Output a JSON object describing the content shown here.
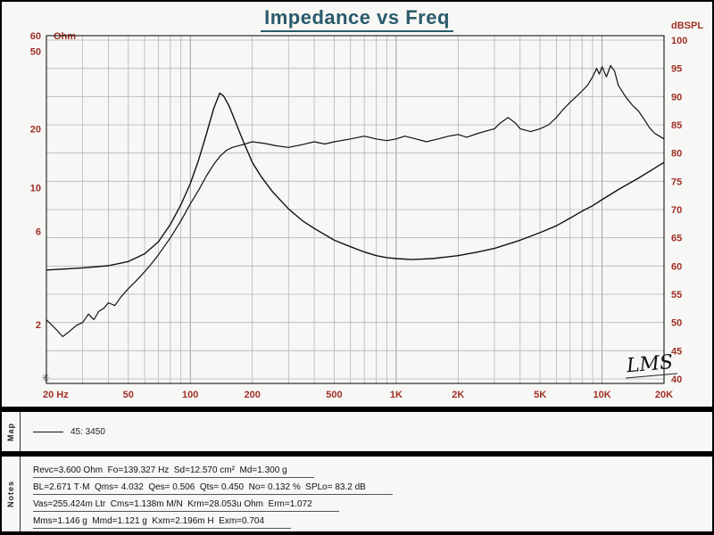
{
  "colors": {
    "bg": "#000000",
    "panel": "#f7f7f5",
    "title": "#2a5a6b",
    "axis": "#a03026",
    "grid": "#b5b5b5",
    "grid_major": "#8a8a8a",
    "curve": "#111111"
  },
  "chart": {
    "logo": "LMS"
  },
  "map": {
    "label": "Map",
    "legend": "45: 3450"
  },
  "notes": {
    "label": "Notes",
    "lines": [
      "Revc=3.600 Ohm  Fo=139.327 Hz  Sd=12.570 cm²  Md=1.300 g",
      "BL=2.671 T·M  Qms= 4.032  Qes= 0.506  Qts= 0.450  No= 0.132 %  SPLo= 83.2 dB",
      "Vas=255.424m Ltr  Cms=1.138m M/N  Krm=28.053u Ohm  Erm=1.072",
      "Mms=1.146 g  Mmd=1.121 g  Kxm=2.196m H  Exm=0.704"
    ]
  },
  "chart_data": {
    "type": "line",
    "title": "Impedance vs Freq",
    "grid": true,
    "x_axis": {
      "label": "Hz",
      "scale": "log",
      "min": 20,
      "max": 20000,
      "ticks": [
        {
          "f": 20,
          "label": "20 Hz"
        },
        {
          "f": 50,
          "label": "50"
        },
        {
          "f": 100,
          "label": "100"
        },
        {
          "f": 200,
          "label": "200"
        },
        {
          "f": 500,
          "label": "500"
        },
        {
          "f": 1000,
          "label": "1K"
        },
        {
          "f": 2000,
          "label": "2K"
        },
        {
          "f": 5000,
          "label": "5K"
        },
        {
          "f": 10000,
          "label": "10K"
        },
        {
          "f": 20000,
          "label": "20K"
        }
      ]
    },
    "left_axis": {
      "unit": "Ohm",
      "scale": "log",
      "min": 1,
      "max": 60,
      "ticks": [
        60,
        50,
        20,
        10,
        6,
        2
      ]
    },
    "right_axis": {
      "unit": "dBSPL",
      "scale": "linear",
      "min": 40,
      "max": 100,
      "tick_step": 5,
      "ticks": [
        100,
        95,
        90,
        85,
        80,
        75,
        70,
        65,
        60,
        55,
        50,
        45,
        40
      ]
    },
    "series": [
      {
        "name": "impedance",
        "axis": "left",
        "unit": "Ohm",
        "points": [
          [
            20,
            3.8
          ],
          [
            25,
            3.85
          ],
          [
            30,
            3.9
          ],
          [
            40,
            4.0
          ],
          [
            50,
            4.2
          ],
          [
            60,
            4.6
          ],
          [
            70,
            5.3
          ],
          [
            80,
            6.5
          ],
          [
            90,
            8.2
          ],
          [
            100,
            10.5
          ],
          [
            110,
            14
          ],
          [
            120,
            19
          ],
          [
            130,
            25.5
          ],
          [
            139,
            30.5
          ],
          [
            145,
            29.5
          ],
          [
            155,
            26
          ],
          [
            165,
            22
          ],
          [
            180,
            17.5
          ],
          [
            200,
            13.5
          ],
          [
            220,
            11.5
          ],
          [
            250,
            9.6
          ],
          [
            300,
            7.8
          ],
          [
            350,
            6.8
          ],
          [
            400,
            6.2
          ],
          [
            500,
            5.4
          ],
          [
            600,
            5.0
          ],
          [
            700,
            4.7
          ],
          [
            800,
            4.5
          ],
          [
            900,
            4.4
          ],
          [
            1000,
            4.35
          ],
          [
            1200,
            4.3
          ],
          [
            1500,
            4.35
          ],
          [
            2000,
            4.5
          ],
          [
            2500,
            4.7
          ],
          [
            3000,
            4.9
          ],
          [
            4000,
            5.4
          ],
          [
            5000,
            5.9
          ],
          [
            6000,
            6.4
          ],
          [
            7000,
            7.0
          ],
          [
            8000,
            7.6
          ],
          [
            9000,
            8.1
          ],
          [
            10000,
            8.7
          ],
          [
            12000,
            9.8
          ],
          [
            15000,
            11.2
          ],
          [
            18000,
            12.6
          ],
          [
            20000,
            13.5
          ]
        ]
      },
      {
        "name": "spl",
        "axis": "right",
        "unit": "dBSPL",
        "points": [
          [
            20,
            50.5
          ],
          [
            22,
            49
          ],
          [
            24,
            47.5
          ],
          [
            26,
            48.5
          ],
          [
            28,
            49.5
          ],
          [
            30,
            50
          ],
          [
            32,
            51.5
          ],
          [
            34,
            50.5
          ],
          [
            36,
            52
          ],
          [
            38,
            52.5
          ],
          [
            40,
            53.5
          ],
          [
            43,
            53
          ],
          [
            46,
            54.5
          ],
          [
            50,
            56
          ],
          [
            55,
            57.5
          ],
          [
            60,
            59
          ],
          [
            65,
            60.5
          ],
          [
            70,
            62
          ],
          [
            80,
            65
          ],
          [
            90,
            68
          ],
          [
            100,
            71
          ],
          [
            110,
            73.5
          ],
          [
            120,
            76
          ],
          [
            130,
            78
          ],
          [
            140,
            79.5
          ],
          [
            150,
            80.5
          ],
          [
            160,
            81
          ],
          [
            180,
            81.5
          ],
          [
            200,
            82
          ],
          [
            230,
            81.7
          ],
          [
            260,
            81.3
          ],
          [
            300,
            81
          ],
          [
            350,
            81.5
          ],
          [
            400,
            82
          ],
          [
            450,
            81.6
          ],
          [
            500,
            82
          ],
          [
            600,
            82.5
          ],
          [
            700,
            83
          ],
          [
            800,
            82.5
          ],
          [
            900,
            82.2
          ],
          [
            1000,
            82.5
          ],
          [
            1100,
            83
          ],
          [
            1250,
            82.5
          ],
          [
            1400,
            82
          ],
          [
            1600,
            82.5
          ],
          [
            1800,
            83
          ],
          [
            2000,
            83.3
          ],
          [
            2200,
            82.8
          ],
          [
            2500,
            83.5
          ],
          [
            2800,
            84
          ],
          [
            3000,
            84.3
          ],
          [
            3200,
            85.3
          ],
          [
            3500,
            86.3
          ],
          [
            3800,
            85.3
          ],
          [
            4000,
            84.3
          ],
          [
            4500,
            83.8
          ],
          [
            5000,
            84.3
          ],
          [
            5500,
            85
          ],
          [
            6000,
            86.3
          ],
          [
            6500,
            87.8
          ],
          [
            7000,
            89
          ],
          [
            7500,
            90
          ],
          [
            8000,
            91
          ],
          [
            8500,
            92
          ],
          [
            9000,
            93.5
          ],
          [
            9400,
            95
          ],
          [
            9700,
            94
          ],
          [
            10000,
            95.3
          ],
          [
            10500,
            93.5
          ],
          [
            11000,
            95.5
          ],
          [
            11500,
            94.5
          ],
          [
            12000,
            92
          ],
          [
            13000,
            90
          ],
          [
            14000,
            88.5
          ],
          [
            15000,
            87.5
          ],
          [
            16000,
            86
          ],
          [
            17000,
            84.5
          ],
          [
            18000,
            83.5
          ],
          [
            19000,
            83
          ],
          [
            20000,
            82.5
          ]
        ]
      }
    ]
  }
}
